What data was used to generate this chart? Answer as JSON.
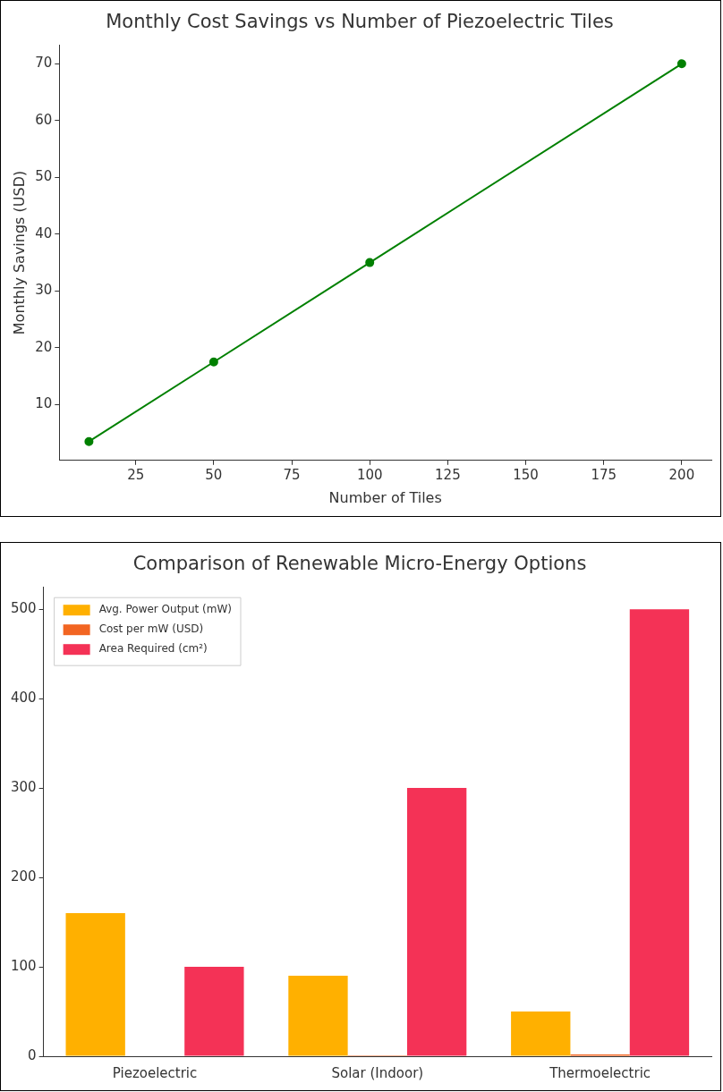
{
  "chart_data": [
    {
      "type": "line",
      "title": "Monthly Cost Savings vs Number of Piezoelectric Tiles",
      "xlabel": "Number of Tiles",
      "ylabel": "Monthly Savings (USD)",
      "x": [
        10,
        50,
        100,
        200
      ],
      "series": [
        {
          "color": "#008000",
          "values": [
            3.5,
            17.5,
            35,
            70
          ]
        }
      ],
      "xlim": [
        0.5,
        209.5
      ],
      "xticks": [
        25,
        50,
        75,
        100,
        125,
        150,
        175,
        200
      ],
      "ylim": [
        0.175,
        73.325
      ],
      "yticks": [
        10,
        20,
        30,
        40,
        50,
        60,
        70
      ],
      "marker": "circle",
      "line_style": "solid",
      "legend": false
    },
    {
      "type": "bar",
      "title": "Comparison of Renewable Micro-Energy Options",
      "categories": [
        "Piezoelectric",
        "Solar (Indoor)",
        "Thermoelectric"
      ],
      "series": [
        {
          "name": "Avg. Power Output (mW)",
          "color": "#ffb000",
          "values": [
            160,
            90,
            50
          ]
        },
        {
          "name": "Cost per mW (USD)",
          "color": "#f26522",
          "values": [
            0,
            1,
            2
          ]
        },
        {
          "name": "Area Required (cm²)",
          "color": "#f43256",
          "values": [
            100,
            300,
            500
          ]
        }
      ],
      "ylim": [
        0,
        525
      ],
      "yticks": [
        0,
        100,
        200,
        300,
        400,
        500
      ],
      "legend": "top left"
    }
  ]
}
